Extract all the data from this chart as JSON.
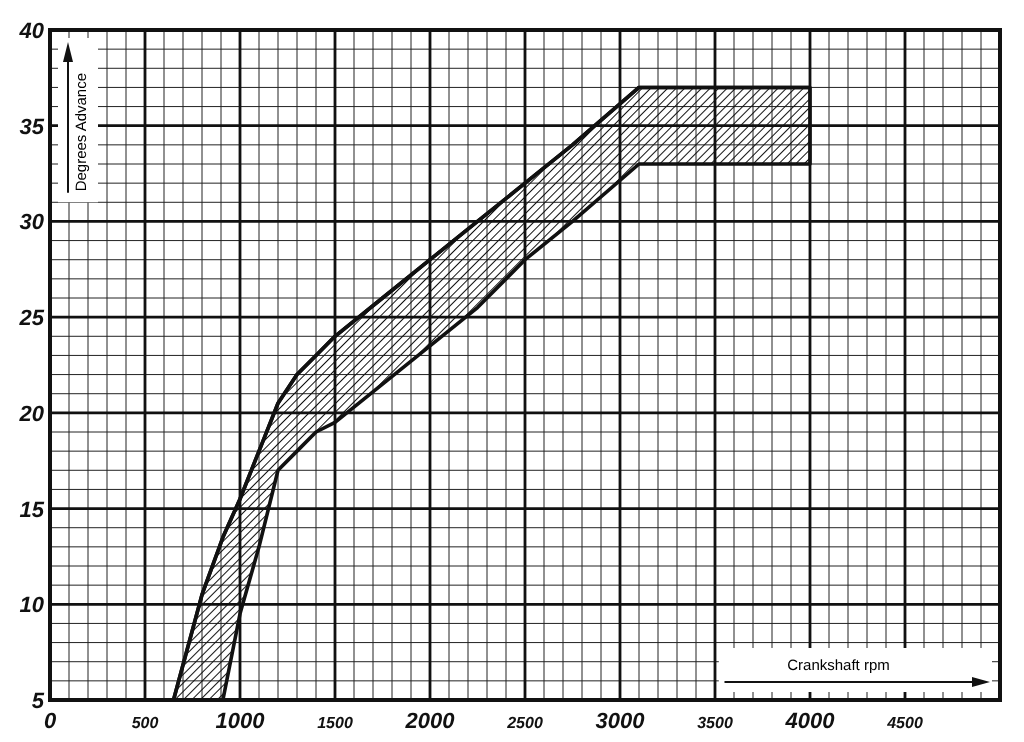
{
  "chart_data": {
    "type": "line",
    "xlabel": "Crankshaft rpm",
    "ylabel": "Degrees Advance",
    "xlim": [
      0,
      5000
    ],
    "ylim": [
      5,
      40
    ],
    "xticks": [
      0,
      500,
      1000,
      1500,
      2000,
      2500,
      3000,
      3500,
      4000,
      4500
    ],
    "yticks": [
      5,
      10,
      15,
      20,
      25,
      30,
      35,
      40
    ],
    "grid": true,
    "marker": "none",
    "line_style": "solid",
    "series": [
      {
        "color": "#111111",
        "x": [
          650,
          800,
          910,
          1000,
          1100,
          1200,
          1300,
          1400,
          1500,
          1750,
          2000,
          2250,
          2500,
          2750,
          3100,
          4000
        ],
        "values": [
          5,
          10.5,
          13.5,
          15.5,
          18,
          20.5,
          22,
          23,
          24,
          26,
          28,
          30,
          32,
          34,
          37,
          37
        ],
        "upper": [
          5,
          10.5,
          13.5,
          15.5,
          18,
          20.5,
          22,
          23,
          24,
          26,
          28,
          30,
          32,
          34,
          37,
          37
        ],
        "lower": [
          5,
          5,
          5,
          9.5,
          13,
          17,
          18,
          19,
          19.5,
          21.5,
          23.5,
          25.5,
          28,
          30,
          33,
          33
        ]
      }
    ]
  }
}
